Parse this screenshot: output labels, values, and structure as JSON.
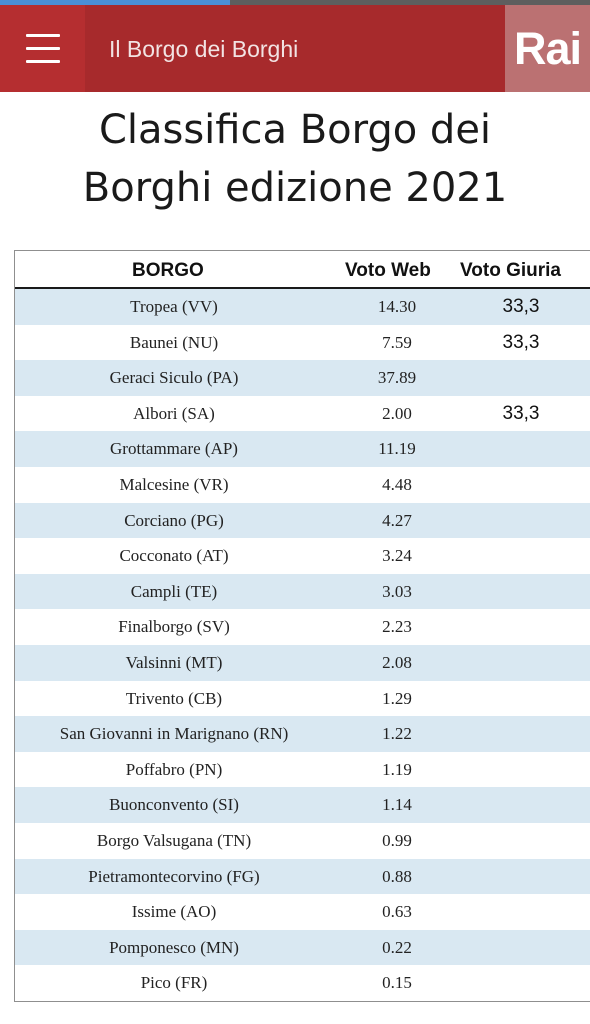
{
  "progress": {
    "fraction": 0.39
  },
  "header": {
    "menu_icon": "hamburger-menu-icon",
    "title": "Il Borgo dei Borghi",
    "logo": "Rai",
    "colors": {
      "bar": "#a72a2c",
      "menu": "#b52e30",
      "logo_bg": "#bb7172"
    }
  },
  "page": {
    "title_line1": "Classifica Borgo dei",
    "title_line2": "Borghi edizione 2021"
  },
  "table": {
    "headers": {
      "borgo": "BORGO",
      "web": "Voto Web",
      "giuria": "Voto Giuria"
    },
    "row_shade_color": "#d9e8f2",
    "rows": [
      {
        "borgo": "Tropea (VV)",
        "web": "14.30",
        "giuria": "33,3"
      },
      {
        "borgo": "Baunei (NU)",
        "web": "7.59",
        "giuria": "33,3"
      },
      {
        "borgo": "Geraci Siculo (PA)",
        "web": "37.89",
        "giuria": ""
      },
      {
        "borgo": "Albori (SA)",
        "web": "2.00",
        "giuria": "33,3"
      },
      {
        "borgo": "Grottammare (AP)",
        "web": "11.19",
        "giuria": ""
      },
      {
        "borgo": "Malcesine (VR)",
        "web": "4.48",
        "giuria": ""
      },
      {
        "borgo": "Corciano (PG)",
        "web": "4.27",
        "giuria": ""
      },
      {
        "borgo": "Cocconato (AT)",
        "web": "3.24",
        "giuria": ""
      },
      {
        "borgo": "Campli (TE)",
        "web": "3.03",
        "giuria": ""
      },
      {
        "borgo": "Finalborgo (SV)",
        "web": "2.23",
        "giuria": ""
      },
      {
        "borgo": "Valsinni (MT)",
        "web": "2.08",
        "giuria": ""
      },
      {
        "borgo": "Trivento (CB)",
        "web": "1.29",
        "giuria": ""
      },
      {
        "borgo": "San Giovanni in Marignano (RN)",
        "web": "1.22",
        "giuria": ""
      },
      {
        "borgo": "Poffabro (PN)",
        "web": "1.19",
        "giuria": ""
      },
      {
        "borgo": "Buonconvento (SI)",
        "web": "1.14",
        "giuria": ""
      },
      {
        "borgo": "Borgo Valsugana (TN)",
        "web": "0.99",
        "giuria": ""
      },
      {
        "borgo": "Pietramontecorvino (FG)",
        "web": "0.88",
        "giuria": ""
      },
      {
        "borgo": "Issime (AO)",
        "web": "0.63",
        "giuria": ""
      },
      {
        "borgo": "Pomponesco (MN)",
        "web": "0.22",
        "giuria": ""
      },
      {
        "borgo": "Pico (FR)",
        "web": "0.15",
        "giuria": ""
      }
    ]
  }
}
